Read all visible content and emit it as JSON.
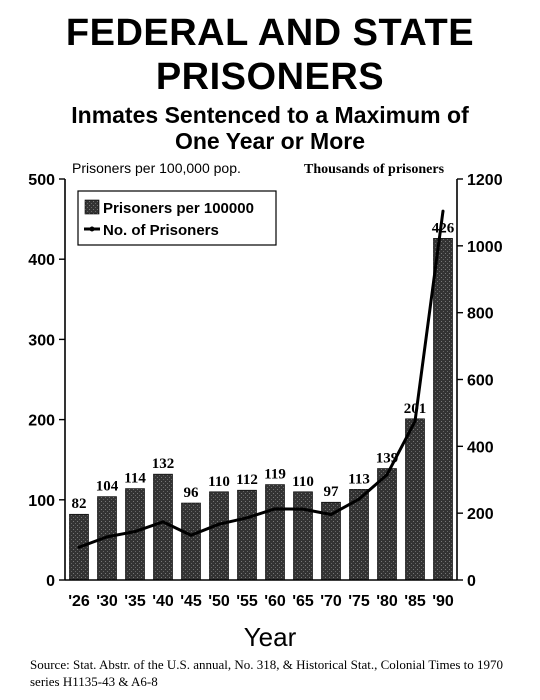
{
  "titles": {
    "line1": "FEDERAL AND STATE",
    "line2": "PRISONERS",
    "sub1": "Inmates Sentenced to a Maximum of",
    "sub2": "One Year or More"
  },
  "source": "Source: Stat. Abstr. of the U.S. annual, No. 318, & Historical Stat., Colonial Times to 1970 series H1135-43 & A6-8",
  "colors": {
    "bar": "#333333",
    "line": "#000000",
    "axis": "#000000"
  },
  "chart_data": {
    "type": "bar",
    "title": "FEDERAL AND STATE PRISONERS",
    "subtitle": "Inmates Sentenced to a Maximum of One Year or More",
    "xlabel": "Year",
    "ylabel": "Prisoners per 100,000 pop.",
    "y2label": "Thousands of prisoners",
    "categories": [
      "'26",
      "'30",
      "'35",
      "'40",
      "'45",
      "'50",
      "'55",
      "'60",
      "'65",
      "'70",
      "'75",
      "'80",
      "'85",
      "'90"
    ],
    "ylim": [
      0,
      500
    ],
    "yticks": [
      0,
      100,
      200,
      300,
      400,
      500
    ],
    "y2lim": [
      0,
      1200
    ],
    "y2ticks": [
      0,
      200,
      400,
      600,
      800,
      1000,
      1200
    ],
    "legend_position": "top-left",
    "grid": false,
    "series": [
      {
        "name": "Prisoners per 100000",
        "type": "bar",
        "axis": "left",
        "values": [
          82,
          104,
          114,
          132,
          96,
          110,
          112,
          119,
          110,
          97,
          113,
          139,
          201,
          426
        ],
        "labels": [
          "82",
          "104",
          "114",
          "132",
          "96",
          "110",
          "112",
          "119",
          "110",
          "97",
          "113",
          "139",
          "201",
          "426"
        ]
      },
      {
        "name": "No. of Prisoners",
        "type": "line",
        "axis": "right",
        "values": [
          98,
          129,
          145,
          174,
          134,
          167,
          186,
          213,
          212,
          196,
          242,
          315,
          475,
          1104
        ]
      }
    ]
  }
}
